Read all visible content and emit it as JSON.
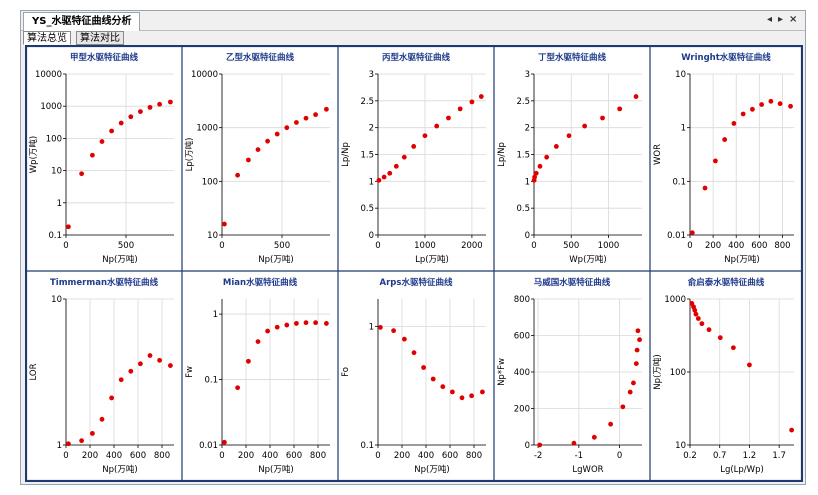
{
  "window": {
    "title": "YS_水驱特征曲线分析",
    "controls": [
      "◂",
      "▸",
      "×"
    ]
  },
  "tabs": [
    {
      "label": "算法总览",
      "active": true
    },
    {
      "label": "算法对比",
      "active": false
    }
  ],
  "colors": {
    "point": "#e00000",
    "border": "#1f3a70",
    "title": "#1f3a8a",
    "grid": "#d8d8d8"
  },
  "chart_data": [
    {
      "type": "scatter",
      "title": "甲型水驱特征曲线",
      "xlabel": "Np(万吨)",
      "ylabel": "Wp(万吨)",
      "xlim": [
        0,
        900
      ],
      "ylim": [
        0.1,
        10000
      ],
      "yscale": "log",
      "xticks": [
        0,
        500
      ],
      "yticks": [
        0.1,
        1,
        10,
        100,
        1000,
        10000
      ],
      "yticklabels": [
        "0.1",
        "1",
        "10",
        "100",
        "1000",
        "10000"
      ],
      "points": [
        [
          20,
          0.18
        ],
        [
          130,
          8
        ],
        [
          220,
          30
        ],
        [
          300,
          80
        ],
        [
          380,
          170
        ],
        [
          460,
          300
        ],
        [
          540,
          470
        ],
        [
          620,
          680
        ],
        [
          700,
          920
        ],
        [
          780,
          1150
        ],
        [
          870,
          1350
        ]
      ]
    },
    {
      "type": "scatter",
      "title": "乙型水驱特征曲线",
      "xlabel": "Np(万吨)",
      "ylabel": "Lp(万吨)",
      "xlim": [
        0,
        900
      ],
      "ylim": [
        10,
        10000
      ],
      "yscale": "log",
      "xticks": [
        0,
        500
      ],
      "yticks": [
        10,
        100,
        1000,
        10000
      ],
      "yticklabels": [
        "10",
        "100",
        "1000",
        "10000"
      ],
      "points": [
        [
          20,
          16
        ],
        [
          130,
          130
        ],
        [
          220,
          250
        ],
        [
          300,
          390
        ],
        [
          380,
          560
        ],
        [
          460,
          760
        ],
        [
          540,
          1000
        ],
        [
          620,
          1250
        ],
        [
          700,
          1500
        ],
        [
          780,
          1750
        ],
        [
          870,
          2200
        ]
      ]
    },
    {
      "type": "scatter",
      "title": "丙型水驱特征曲线",
      "xlabel": "Lp(万吨)",
      "ylabel": "Lp/Np",
      "xlim": [
        0,
        2300
      ],
      "ylim": [
        0,
        3
      ],
      "xticks": [
        0,
        1000,
        2000
      ],
      "yticks": [
        0,
        0.5,
        1,
        1.5,
        2,
        2.5,
        3
      ],
      "yticklabels": [
        "0",
        "0.5",
        "1",
        "1.5",
        "2",
        "2.5",
        "3"
      ],
      "points": [
        [
          20,
          1.02
        ],
        [
          130,
          1.08
        ],
        [
          250,
          1.15
        ],
        [
          390,
          1.28
        ],
        [
          560,
          1.45
        ],
        [
          760,
          1.65
        ],
        [
          1000,
          1.85
        ],
        [
          1250,
          2.03
        ],
        [
          1500,
          2.18
        ],
        [
          1750,
          2.35
        ],
        [
          2000,
          2.48
        ],
        [
          2200,
          2.58
        ]
      ]
    },
    {
      "type": "scatter",
      "title": "丁型水驱特征曲线",
      "xlabel": "Wp(万吨)",
      "ylabel": "Lp/Np",
      "xlim": [
        0,
        1450
      ],
      "ylim": [
        0,
        3
      ],
      "xticks": [
        0,
        500,
        1000
      ],
      "yticks": [
        0,
        0.5,
        1,
        1.5,
        2,
        2.5,
        3
      ],
      "yticklabels": [
        "0",
        "0.5",
        "1",
        "1.5",
        "2",
        "2.5",
        "3"
      ],
      "points": [
        [
          2,
          1.02
        ],
        [
          8,
          1.08
        ],
        [
          30,
          1.15
        ],
        [
          80,
          1.28
        ],
        [
          170,
          1.45
        ],
        [
          300,
          1.65
        ],
        [
          470,
          1.85
        ],
        [
          680,
          2.03
        ],
        [
          920,
          2.18
        ],
        [
          1150,
          2.35
        ],
        [
          1370,
          2.58
        ]
      ]
    },
    {
      "type": "scatter",
      "title": "Wringht水驱特征曲线",
      "xlabel": "Np(万吨)",
      "ylabel": "WOR",
      "xlim": [
        0,
        900
      ],
      "ylim": [
        0.01,
        10
      ],
      "yscale": "log",
      "xticks": [
        0,
        200,
        400,
        600,
        800
      ],
      "yticks": [
        0.01,
        0.1,
        1,
        10
      ],
      "yticklabels": [
        "0.01",
        "0.1",
        "1",
        "10"
      ],
      "points": [
        [
          20,
          0.011
        ],
        [
          130,
          0.075
        ],
        [
          220,
          0.24
        ],
        [
          300,
          0.6
        ],
        [
          380,
          1.2
        ],
        [
          460,
          1.8
        ],
        [
          540,
          2.2
        ],
        [
          620,
          2.7
        ],
        [
          700,
          3.1
        ],
        [
          780,
          2.8
        ],
        [
          870,
          2.5
        ]
      ]
    },
    {
      "type": "scatter",
      "title": "Timmerman水驱特征曲线",
      "xlabel": "Np(万吨)",
      "ylabel": "LOR",
      "xlim": [
        0,
        900
      ],
      "ylim": [
        1,
        10
      ],
      "yscale": "log",
      "xticks": [
        0,
        200,
        400,
        600,
        800
      ],
      "yticks": [
        1,
        10
      ],
      "yticklabels": [
        "1",
        "10"
      ],
      "points": [
        [
          20,
          1.02
        ],
        [
          130,
          1.07
        ],
        [
          220,
          1.2
        ],
        [
          300,
          1.5
        ],
        [
          380,
          2.1
        ],
        [
          460,
          2.8
        ],
        [
          540,
          3.2
        ],
        [
          620,
          3.6
        ],
        [
          700,
          4.1
        ],
        [
          780,
          3.8
        ],
        [
          870,
          3.5
        ]
      ]
    },
    {
      "type": "scatter",
      "title": "Mian水驱特征曲线",
      "xlabel": "Np(万吨)",
      "ylabel": "Fw",
      "xlim": [
        0,
        900
      ],
      "ylim": [
        0.01,
        1.7
      ],
      "yscale": "log",
      "xticks": [
        0,
        200,
        400,
        600,
        800
      ],
      "yticks": [
        0.01,
        0.1,
        1
      ],
      "yticklabels": [
        "0.01",
        "0.1",
        "1"
      ],
      "points": [
        [
          20,
          0.011
        ],
        [
          130,
          0.075
        ],
        [
          220,
          0.19
        ],
        [
          300,
          0.38
        ],
        [
          380,
          0.55
        ],
        [
          460,
          0.63
        ],
        [
          540,
          0.68
        ],
        [
          620,
          0.72
        ],
        [
          700,
          0.74
        ],
        [
          780,
          0.74
        ],
        [
          870,
          0.72
        ]
      ]
    },
    {
      "type": "scatter",
      "title": "Arps水驱特征曲线",
      "xlabel": "Np(万吨)",
      "ylabel": "Fo",
      "xlim": [
        0,
        900
      ],
      "ylim": [
        0.1,
        1.7
      ],
      "yscale": "log",
      "xticks": [
        0,
        200,
        400,
        600,
        800
      ],
      "yticks": [
        0.1,
        1
      ],
      "yticklabels": [
        "0.1",
        "1"
      ],
      "points": [
        [
          20,
          0.98
        ],
        [
          130,
          0.92
        ],
        [
          220,
          0.78
        ],
        [
          300,
          0.6
        ],
        [
          380,
          0.45
        ],
        [
          460,
          0.36
        ],
        [
          540,
          0.31
        ],
        [
          620,
          0.28
        ],
        [
          700,
          0.25
        ],
        [
          780,
          0.26
        ],
        [
          870,
          0.28
        ]
      ]
    },
    {
      "type": "scatter",
      "title": "马威国水驱特征曲线",
      "xlabel": "LgWOR",
      "ylabel": "Np*Fw",
      "xlim": [
        -2.1,
        0.55
      ],
      "ylim": [
        0,
        800
      ],
      "xticks": [
        -2,
        -1,
        0
      ],
      "yticks": [
        0,
        200,
        400,
        600,
        800
      ],
      "yticklabels": [
        "0",
        "200",
        "400",
        "600",
        "800"
      ],
      "points": [
        [
          -1.96,
          0.2
        ],
        [
          -1.12,
          10
        ],
        [
          -0.62,
          42
        ],
        [
          -0.22,
          114
        ],
        [
          0.08,
          209
        ],
        [
          0.26,
          290
        ],
        [
          0.34,
          340
        ],
        [
          0.41,
          446
        ],
        [
          0.43,
          520
        ],
        [
          0.49,
          577
        ],
        [
          0.45,
          626
        ]
      ]
    },
    {
      "type": "scatter",
      "title": "俞启泰水驱特征曲线",
      "xlabel": "Lg(Lp/Wp)",
      "ylabel": "Np(万吨)",
      "xlim": [
        0.2,
        1.95
      ],
      "ylim": [
        10,
        1000
      ],
      "yscale": "log",
      "xticks": [
        0.2,
        0.7,
        1.2,
        1.7
      ],
      "yticks": [
        10,
        100,
        1000
      ],
      "yticklabels": [
        "10",
        "100",
        "1000"
      ],
      "points": [
        [
          1.91,
          16
        ],
        [
          1.2,
          125
        ],
        [
          0.93,
          215
        ],
        [
          0.71,
          295
        ],
        [
          0.52,
          380
        ],
        [
          0.4,
          460
        ],
        [
          0.34,
          540
        ],
        [
          0.3,
          620
        ],
        [
          0.28,
          700
        ],
        [
          0.26,
          780
        ],
        [
          0.23,
          870
        ]
      ]
    }
  ]
}
